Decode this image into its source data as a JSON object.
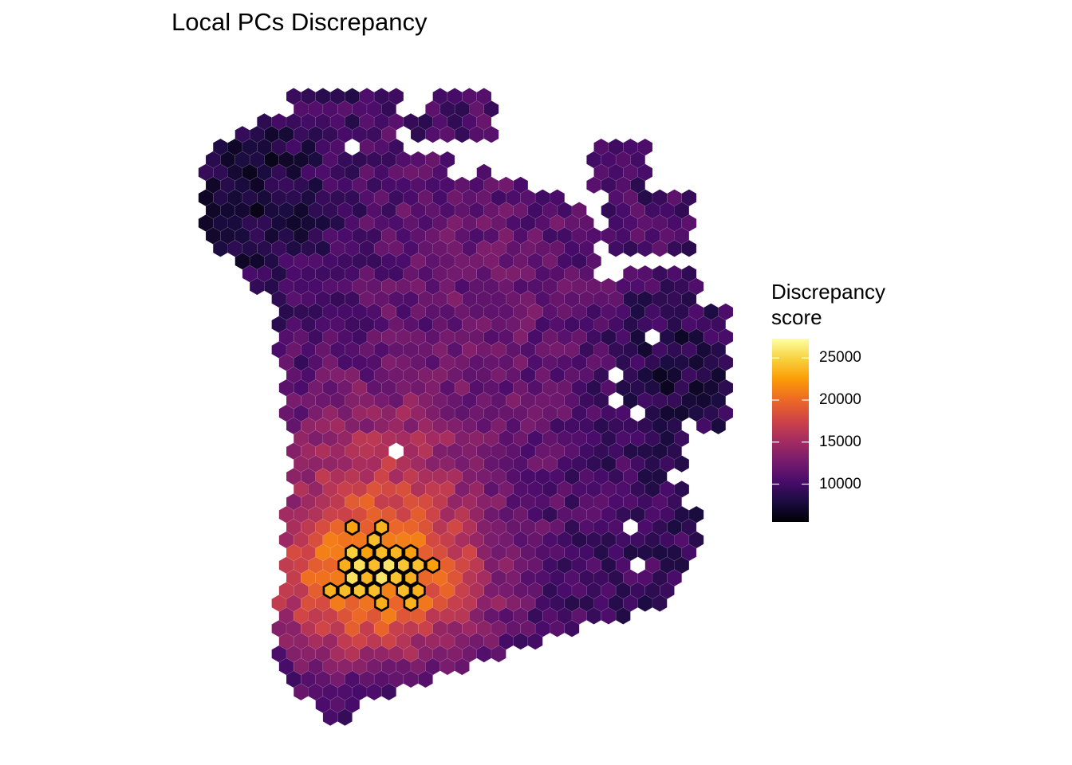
{
  "chart_data": {
    "type": "heatmap",
    "subtype": "spatial hexagonal spot map",
    "title": "Local PCs Discrepancy",
    "xlabel": "",
    "ylabel": "",
    "grid": false,
    "axes_visible": false,
    "colormap": "inferno",
    "color_stops": [
      "#000004",
      "#1b0c41",
      "#4a0c6b",
      "#781c6d",
      "#a52c60",
      "#cf4446",
      "#ed6925",
      "#fb9b06",
      "#f7d13d",
      "#fcffa4"
    ],
    "legend": {
      "title": "Discrepancy\nscore",
      "placement": "right",
      "range": [
        5500,
        27300
      ],
      "ticks": [
        10000,
        15000,
        20000,
        25000
      ],
      "tick_labels": [
        "10000",
        "15000",
        "20000",
        "25000"
      ]
    },
    "highlight": {
      "stroke_color": "#000000",
      "description_count": 28
    }
  }
}
